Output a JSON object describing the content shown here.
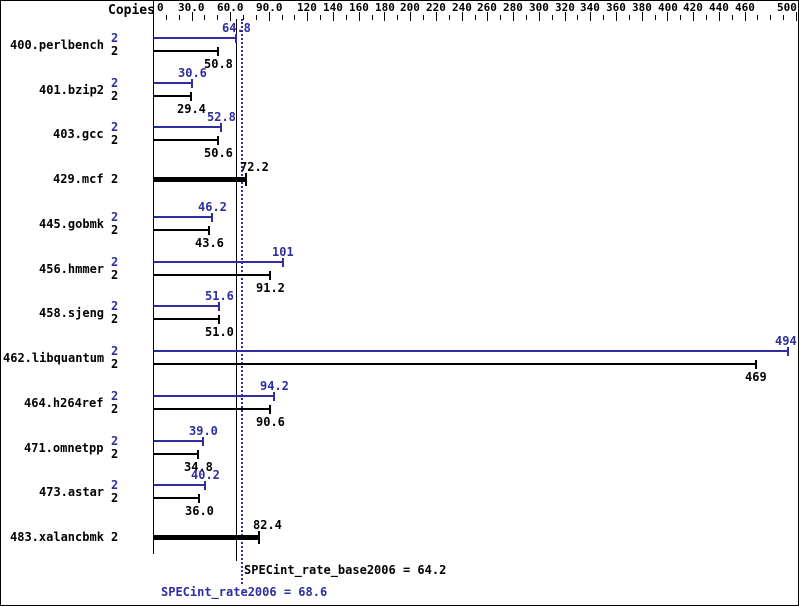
{
  "copies_header": "Copies",
  "colors": {
    "peak_blue": "#2e2ea0",
    "base_black": "#000000",
    "background": "#ffffff"
  },
  "axis": {
    "min": 0,
    "max": 500,
    "minor_step": 10,
    "major_ticks": [
      {
        "value": 0,
        "label": "0"
      },
      {
        "value": 30,
        "label": "30.0"
      },
      {
        "value": 60,
        "label": "60.0"
      },
      {
        "value": 90,
        "label": "90.0"
      },
      {
        "value": 120,
        "label": "120"
      },
      {
        "value": 140,
        "label": "140"
      },
      {
        "value": 160,
        "label": "160"
      },
      {
        "value": 180,
        "label": "180"
      },
      {
        "value": 200,
        "label": "200"
      },
      {
        "value": 220,
        "label": "220"
      },
      {
        "value": 240,
        "label": "240"
      },
      {
        "value": 260,
        "label": "260"
      },
      {
        "value": 280,
        "label": "280"
      },
      {
        "value": 300,
        "label": "300"
      },
      {
        "value": 320,
        "label": "320"
      },
      {
        "value": 340,
        "label": "340"
      },
      {
        "value": 360,
        "label": "360"
      },
      {
        "value": 380,
        "label": "380"
      },
      {
        "value": 400,
        "label": "400"
      },
      {
        "value": 420,
        "label": "420"
      },
      {
        "value": 440,
        "label": "440"
      },
      {
        "value": 460,
        "label": "460"
      },
      {
        "value": 500,
        "label": "500"
      }
    ]
  },
  "chart_data": {
    "type": "bar",
    "orientation": "horizontal",
    "xlabel": "Copies",
    "xlim": [
      0,
      500
    ],
    "benchmarks": [
      {
        "name": "400.perlbench",
        "bars": [
          {
            "kind": "peak",
            "copies": "2",
            "value": 64.8,
            "label": "64.8"
          },
          {
            "kind": "base",
            "copies": "2",
            "value": 50.8,
            "label": "50.8"
          }
        ]
      },
      {
        "name": "401.bzip2",
        "bars": [
          {
            "kind": "peak",
            "copies": "2",
            "value": 30.6,
            "label": "30.6"
          },
          {
            "kind": "base",
            "copies": "2",
            "value": 29.4,
            "label": "29.4"
          }
        ]
      },
      {
        "name": "403.gcc",
        "bars": [
          {
            "kind": "peak",
            "copies": "2",
            "value": 52.8,
            "label": "52.8"
          },
          {
            "kind": "base",
            "copies": "2",
            "value": 50.6,
            "label": "50.6"
          }
        ]
      },
      {
        "name": "429.mcf",
        "bars": [
          {
            "kind": "single",
            "copies": "2",
            "value": 72.2,
            "label": "72.2"
          }
        ]
      },
      {
        "name": "445.gobmk",
        "bars": [
          {
            "kind": "peak",
            "copies": "2",
            "value": 46.2,
            "label": "46.2"
          },
          {
            "kind": "base",
            "copies": "2",
            "value": 43.6,
            "label": "43.6"
          }
        ]
      },
      {
        "name": "456.hmmer",
        "bars": [
          {
            "kind": "peak",
            "copies": "2",
            "value": 101,
            "label": "101"
          },
          {
            "kind": "base",
            "copies": "2",
            "value": 91.2,
            "label": "91.2"
          }
        ]
      },
      {
        "name": "458.sjeng",
        "bars": [
          {
            "kind": "peak",
            "copies": "2",
            "value": 51.6,
            "label": "51.6"
          },
          {
            "kind": "base",
            "copies": "2",
            "value": 51.0,
            "label": "51.0"
          }
        ]
      },
      {
        "name": "462.libquantum",
        "bars": [
          {
            "kind": "peak",
            "copies": "2",
            "value": 494,
            "label": "494"
          },
          {
            "kind": "base",
            "copies": "2",
            "value": 469,
            "label": "469"
          }
        ]
      },
      {
        "name": "464.h264ref",
        "bars": [
          {
            "kind": "peak",
            "copies": "2",
            "value": 94.2,
            "label": "94.2"
          },
          {
            "kind": "base",
            "copies": "2",
            "value": 90.6,
            "label": "90.6"
          }
        ]
      },
      {
        "name": "471.omnetpp",
        "bars": [
          {
            "kind": "peak",
            "copies": "2",
            "value": 39.0,
            "label": "39.0"
          },
          {
            "kind": "base",
            "copies": "2",
            "value": 34.8,
            "label": "34.8"
          }
        ]
      },
      {
        "name": "473.astar",
        "bars": [
          {
            "kind": "peak",
            "copies": "2",
            "value": 40.2,
            "label": "40.2"
          },
          {
            "kind": "base",
            "copies": "2",
            "value": 36.0,
            "label": "36.0"
          }
        ]
      },
      {
        "name": "483.xalancbmk",
        "bars": [
          {
            "kind": "single",
            "copies": "2",
            "value": 82.4,
            "label": "82.4"
          }
        ]
      }
    ],
    "reference_lines": [
      {
        "kind": "base",
        "value": 64.2,
        "label": "SPECint_rate_base2006 = 64.2"
      },
      {
        "kind": "peak",
        "value": 68.6,
        "label": "SPECint_rate2006 = 68.6"
      }
    ]
  }
}
